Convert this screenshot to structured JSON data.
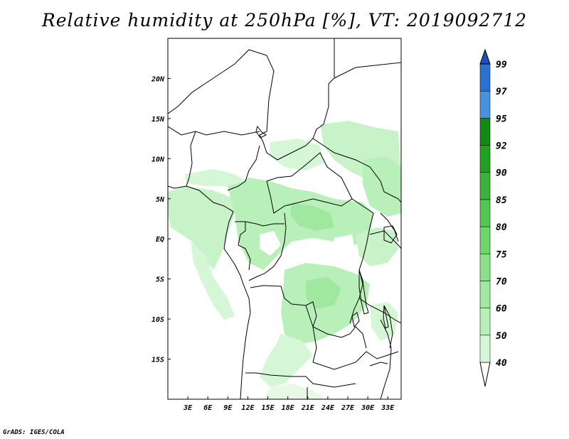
{
  "title": "Relative humidity at 250hPa [%], VT: 2019092712",
  "credit": "GrADS: IGES/COLA",
  "map": {
    "lon_range": [
      0,
      35
    ],
    "lat_range": [
      -20,
      25
    ],
    "lon_ticks": [
      {
        "value": 3,
        "label": "3E"
      },
      {
        "value": 6,
        "label": "6E"
      },
      {
        "value": 9,
        "label": "9E"
      },
      {
        "value": 12,
        "label": "12E"
      },
      {
        "value": 15,
        "label": "15E"
      },
      {
        "value": 18,
        "label": "18E"
      },
      {
        "value": 21,
        "label": "21E"
      },
      {
        "value": 24,
        "label": "24E"
      },
      {
        "value": 27,
        "label": "27E"
      },
      {
        "value": 30,
        "label": "30E"
      },
      {
        "value": 33,
        "label": "33E"
      }
    ],
    "lat_ticks": [
      {
        "value": 20,
        "label": "20N"
      },
      {
        "value": 15,
        "label": "15N"
      },
      {
        "value": 10,
        "label": "10N"
      },
      {
        "value": 5,
        "label": "5N"
      },
      {
        "value": 0,
        "label": "EQ"
      },
      {
        "value": -5,
        "label": "5S"
      },
      {
        "value": -10,
        "label": "10S"
      },
      {
        "value": -15,
        "label": "15S"
      }
    ]
  },
  "colorbar": {
    "levels": [
      "40",
      "50",
      "60",
      "70",
      "75",
      "80",
      "85",
      "90",
      "92",
      "95",
      "97",
      "99"
    ],
    "colors": [
      "#f0fff0",
      "#d6f7d6",
      "#b9f0b9",
      "#a0e8a0",
      "#8ce08c",
      "#6fd66f",
      "#52c852",
      "#39b339",
      "#22a022",
      "#138a13",
      "#4a90e0",
      "#2c70d0",
      "#1a50b8"
    ]
  },
  "colors": {
    "rh_50": "#d6f7d6",
    "rh_60": "#b9f0b9",
    "rh_70": "#a0e8a0",
    "boundary": "#000000"
  }
}
